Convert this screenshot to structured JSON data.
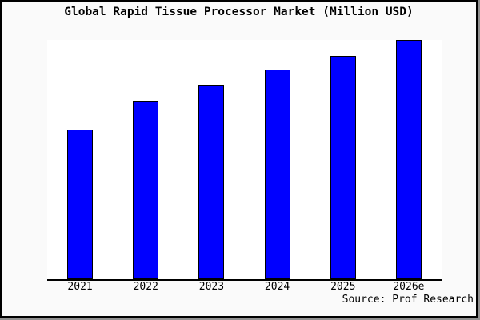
{
  "title": "Global Rapid Tissue Processor Market (Million USD)",
  "source": "Source: Prof Research",
  "colors": {
    "bar_fill": "#0000ff",
    "bar_border": "#000000",
    "axis": "#000000",
    "background": "#fafafa",
    "plot_background": "#ffffff",
    "frame_border": "#000000",
    "frame_shadow": "#909090",
    "text": "#000000"
  },
  "chart_data": {
    "type": "bar",
    "title": "Global Rapid Tissue Processor Market (Million USD)",
    "categories": [
      "2021",
      "2022",
      "2023",
      "2024",
      "2025",
      "2026e"
    ],
    "values": [
      62.5,
      74.6,
      81.3,
      87.6,
      93.4,
      100
    ],
    "value_note": "y-axis has no tick labels in the image; values are relative bar heights with the tallest bar (2026e) = 100",
    "xlabel": "",
    "ylabel": "",
    "ylim": [
      0,
      100
    ],
    "grid": false,
    "legend": false,
    "bar_color": "#0000ff",
    "source": "Source: Prof Research"
  }
}
